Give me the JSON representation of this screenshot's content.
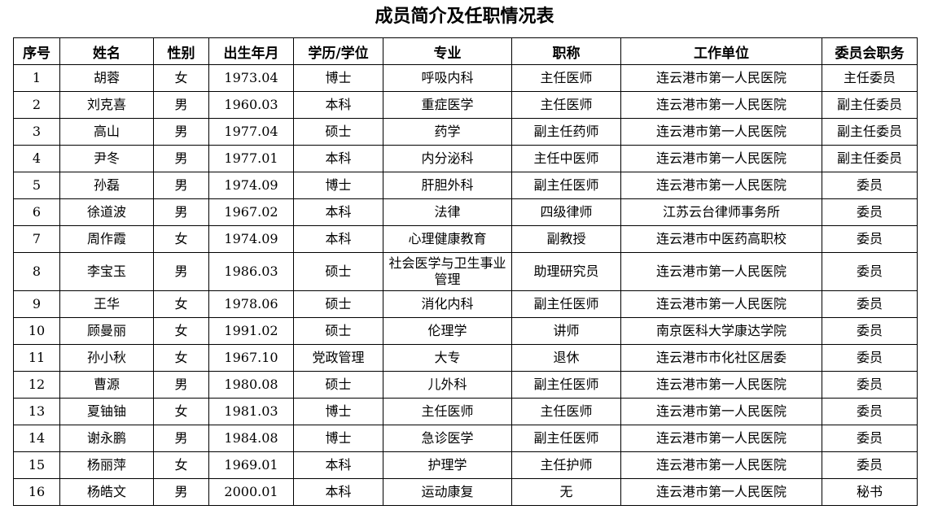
{
  "title": "成员简介及任职情况表",
  "table": {
    "headers": [
      "序号",
      "姓名",
      "性别",
      "出生年月",
      "学历/学位",
      "专业",
      "职称",
      "工作单位",
      "委员会职务"
    ],
    "rows": [
      [
        "1",
        "胡蓉",
        "女",
        "1973.04",
        "博士",
        "呼吸内科",
        "主任医师",
        "连云港市第一人民医院",
        "主任委员"
      ],
      [
        "2",
        "刘克喜",
        "男",
        "1960.03",
        "本科",
        "重症医学",
        "主任医师",
        "连云港市第一人民医院",
        "副主任委员"
      ],
      [
        "3",
        "高山",
        "男",
        "1977.04",
        "硕士",
        "药学",
        "副主任药师",
        "连云港市第一人民医院",
        "副主任委员"
      ],
      [
        "4",
        "尹冬",
        "男",
        "1977.01",
        "本科",
        "内分泌科",
        "主任中医师",
        "连云港市第一人民医院",
        "副主任委员"
      ],
      [
        "5",
        "孙磊",
        "男",
        "1974.09",
        "博士",
        "肝胆外科",
        "副主任医师",
        "连云港市第一人民医院",
        "委员"
      ],
      [
        "6",
        "徐道波",
        "男",
        "1967.02",
        "本科",
        "法律",
        "四级律师",
        "江苏云台律师事务所",
        "委员"
      ],
      [
        "7",
        "周作霞",
        "女",
        "1974.09",
        "本科",
        "心理健康教育",
        "副教授",
        "连云港市中医药高职校",
        "委员"
      ],
      [
        "8",
        "李宝玉",
        "男",
        "1986.03",
        "硕士",
        "社会医学与卫生事业管理",
        "助理研究员",
        "连云港市第一人民医院",
        "委员"
      ],
      [
        "9",
        "王华",
        "女",
        "1978.06",
        "硕士",
        "消化内科",
        "副主任医师",
        "连云港市第一人民医院",
        "委员"
      ],
      [
        "10",
        "顾曼丽",
        "女",
        "1991.02",
        "硕士",
        "伦理学",
        "讲师",
        "南京医科大学康达学院",
        "委员"
      ],
      [
        "11",
        "孙小秋",
        "女",
        "1967.10",
        "党政管理",
        "大专",
        "退休",
        "连云港市市化社区居委",
        "委员"
      ],
      [
        "12",
        "曹源",
        "男",
        "1980.08",
        "硕士",
        "儿外科",
        "副主任医师",
        "连云港市第一人民医院",
        "委员"
      ],
      [
        "13",
        "夏铀铀",
        "女",
        "1981.03",
        "博士",
        "主任医师",
        "主任医师",
        "连云港市第一人民医院",
        "委员"
      ],
      [
        "14",
        "谢永鹏",
        "男",
        "1984.08",
        "博士",
        "急诊医学",
        "副主任医师",
        "连云港市第一人民医院",
        "委员"
      ],
      [
        "15",
        "杨丽萍",
        "女",
        "1969.01",
        "本科",
        "护理学",
        "主任护师",
        "连云港市第一人民医院",
        "委员"
      ],
      [
        "16",
        "杨皓文",
        "男",
        "2000.01",
        "本科",
        "运动康复",
        "无",
        "连云港市第一人民医院",
        "秘书"
      ]
    ]
  }
}
